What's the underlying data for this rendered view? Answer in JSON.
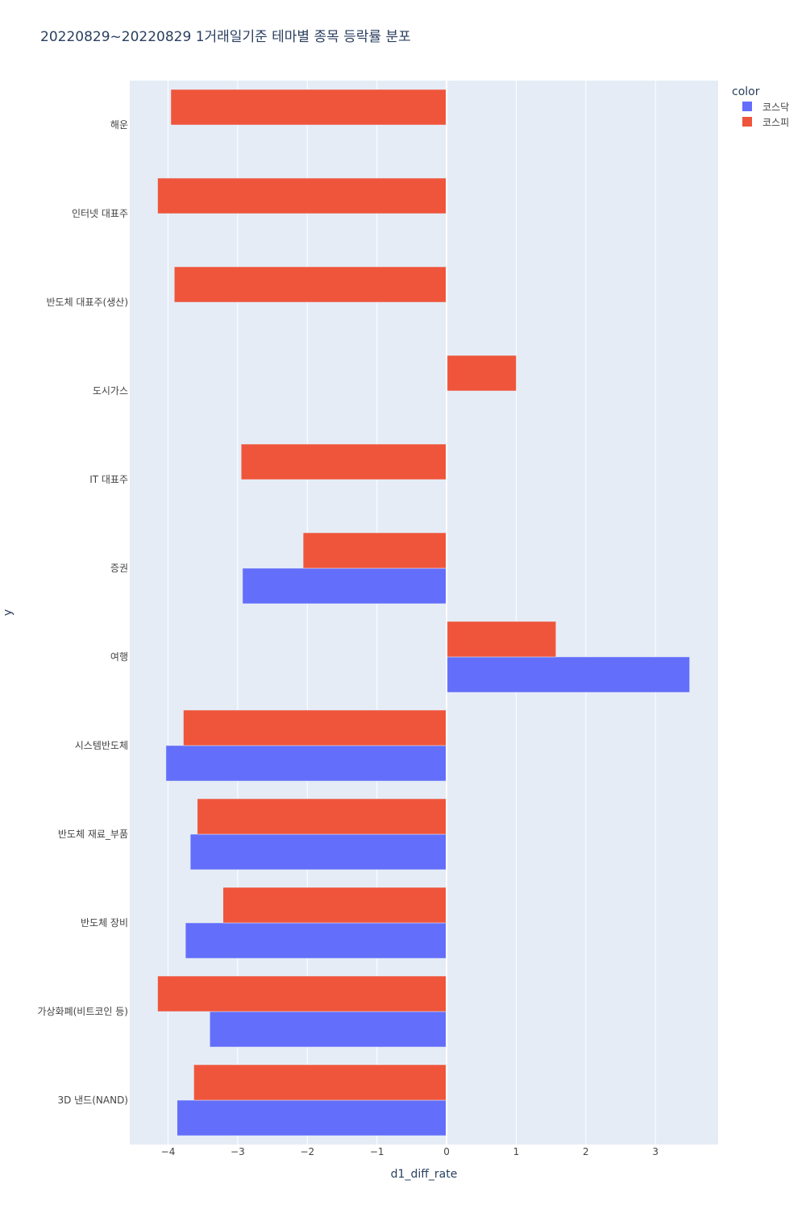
{
  "chart_data": {
    "type": "bar",
    "orientation": "horizontal",
    "barmode": "group",
    "title": "20220829~20220829 1거래일기준 테마별 종목 등락률 분포",
    "xlabel": "d1_diff_rate",
    "ylabel": "y",
    "xlim": [
      -4.55,
      3.9
    ],
    "xticks": [
      -4,
      -3,
      -2,
      -1,
      0,
      1,
      2,
      3
    ],
    "xtick_labels": [
      "−4",
      "−3",
      "−2",
      "−1",
      "0",
      "1",
      "2",
      "3"
    ],
    "grid": true,
    "legend_title": "color",
    "legend_position": "top-right",
    "categories": [
      "해운",
      "인터넷 대표주",
      "반도체 대표주(생산)",
      "도시가스",
      "IT 대표주",
      "증권",
      "여행",
      "시스템반도체",
      "반도체 재료_부품",
      "반도체 장비",
      "가상화폐(비트코인 등)",
      "3D 낸드(NAND)"
    ],
    "series": [
      {
        "name": "코스닥",
        "color": "#636efa",
        "values": [
          null,
          null,
          null,
          null,
          null,
          -2.93,
          3.49,
          -4.03,
          -3.68,
          -3.75,
          -3.4,
          -3.87
        ]
      },
      {
        "name": "코스피",
        "color": "#ef553b",
        "values": [
          -3.96,
          -4.15,
          -3.91,
          1.0,
          -2.95,
          -2.06,
          1.57,
          -3.78,
          -3.58,
          -3.21,
          -4.15,
          -3.63
        ]
      }
    ]
  },
  "colors": {
    "plot_bg": "#e5ecf6",
    "grid": "#ffffff",
    "text": "#2a3f5f",
    "tick_text": "#444444"
  }
}
